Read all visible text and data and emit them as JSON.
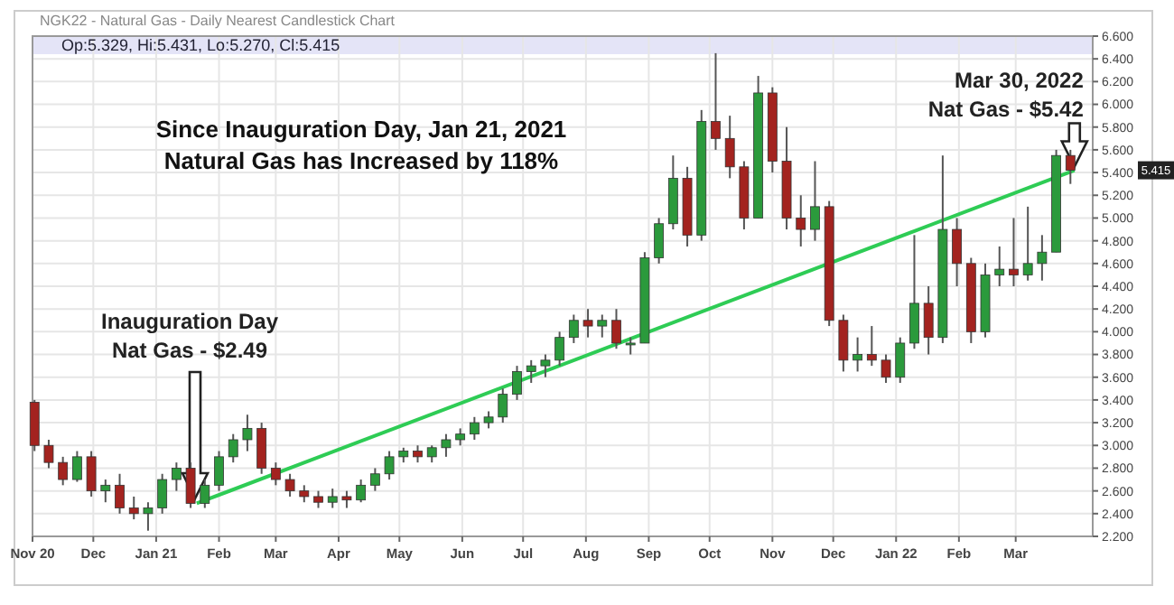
{
  "chart_data": {
    "type": "candlestick",
    "title": "NGK22 - Natural Gas - Daily Nearest Candlestick Chart",
    "x": [
      "2020-11-02",
      "2020-11-09",
      "2020-11-16",
      "2020-11-23",
      "2020-11-30",
      "2020-12-07",
      "2020-12-14",
      "2020-12-21",
      "2020-12-28",
      "2021-01-04",
      "2021-01-11",
      "2021-01-18",
      "2021-01-25",
      "2021-02-01",
      "2021-02-08",
      "2021-02-15",
      "2021-02-22",
      "2021-03-01",
      "2021-03-08",
      "2021-03-15",
      "2021-03-22",
      "2021-03-29",
      "2021-04-05",
      "2021-04-12",
      "2021-04-19",
      "2021-04-26",
      "2021-05-03",
      "2021-05-10",
      "2021-05-17",
      "2021-05-24",
      "2021-05-31",
      "2021-06-07",
      "2021-06-14",
      "2021-06-21",
      "2021-06-28",
      "2021-07-05",
      "2021-07-12",
      "2021-07-19",
      "2021-07-26",
      "2021-08-02",
      "2021-08-09",
      "2021-08-16",
      "2021-08-23",
      "2021-08-30",
      "2021-09-06",
      "2021-09-13",
      "2021-09-20",
      "2021-09-27",
      "2021-10-04",
      "2021-10-11",
      "2021-10-18",
      "2021-10-25",
      "2021-11-01",
      "2021-11-08",
      "2021-11-15",
      "2021-11-22",
      "2021-11-29",
      "2021-12-06",
      "2021-12-13",
      "2021-12-20",
      "2021-12-27",
      "2022-01-03",
      "2022-01-10",
      "2022-01-17",
      "2022-01-24",
      "2022-01-31",
      "2022-02-07",
      "2022-02-14",
      "2022-02-21",
      "2022-02-28",
      "2022-03-07",
      "2022-03-14",
      "2022-03-21",
      "2022-03-28"
    ],
    "ohlc": [
      [
        3.38,
        3.4,
        2.95,
        3.0
      ],
      [
        3.0,
        3.05,
        2.8,
        2.85
      ],
      [
        2.85,
        2.9,
        2.65,
        2.7
      ],
      [
        2.7,
        2.95,
        2.68,
        2.9
      ],
      [
        2.9,
        2.95,
        2.55,
        2.6
      ],
      [
        2.6,
        2.7,
        2.5,
        2.65
      ],
      [
        2.65,
        2.75,
        2.4,
        2.45
      ],
      [
        2.45,
        2.55,
        2.35,
        2.4
      ],
      [
        2.4,
        2.5,
        2.25,
        2.45
      ],
      [
        2.45,
        2.75,
        2.4,
        2.7
      ],
      [
        2.7,
        2.85,
        2.6,
        2.8
      ],
      [
        2.8,
        2.85,
        2.45,
        2.49
      ],
      [
        2.49,
        2.7,
        2.45,
        2.65
      ],
      [
        2.65,
        2.95,
        2.6,
        2.9
      ],
      [
        2.9,
        3.1,
        2.85,
        3.05
      ],
      [
        3.05,
        3.27,
        2.95,
        3.15
      ],
      [
        3.15,
        3.2,
        2.75,
        2.8
      ],
      [
        2.8,
        2.85,
        2.65,
        2.7
      ],
      [
        2.7,
        2.75,
        2.55,
        2.6
      ],
      [
        2.6,
        2.65,
        2.5,
        2.55
      ],
      [
        2.55,
        2.6,
        2.45,
        2.5
      ],
      [
        2.5,
        2.62,
        2.45,
        2.55
      ],
      [
        2.55,
        2.6,
        2.45,
        2.52
      ],
      [
        2.52,
        2.7,
        2.5,
        2.65
      ],
      [
        2.65,
        2.8,
        2.6,
        2.75
      ],
      [
        2.75,
        2.95,
        2.7,
        2.9
      ],
      [
        2.9,
        2.98,
        2.85,
        2.95
      ],
      [
        2.95,
        3.0,
        2.85,
        2.9
      ],
      [
        2.9,
        3.0,
        2.85,
        2.98
      ],
      [
        2.98,
        3.1,
        2.9,
        3.05
      ],
      [
        3.05,
        3.15,
        3.0,
        3.1
      ],
      [
        3.1,
        3.25,
        3.05,
        3.2
      ],
      [
        3.2,
        3.3,
        3.15,
        3.25
      ],
      [
        3.25,
        3.5,
        3.2,
        3.45
      ],
      [
        3.45,
        3.7,
        3.4,
        3.65
      ],
      [
        3.65,
        3.75,
        3.55,
        3.7
      ],
      [
        3.7,
        3.8,
        3.6,
        3.75
      ],
      [
        3.75,
        4.0,
        3.7,
        3.95
      ],
      [
        3.95,
        4.15,
        3.9,
        4.1
      ],
      [
        4.1,
        4.2,
        3.95,
        4.05
      ],
      [
        4.05,
        4.15,
        3.95,
        4.1
      ],
      [
        4.1,
        4.2,
        3.85,
        3.9
      ],
      [
        3.9,
        3.95,
        3.8,
        3.9
      ],
      [
        3.9,
        4.7,
        3.9,
        4.65
      ],
      [
        4.65,
        5.0,
        4.6,
        4.95
      ],
      [
        4.95,
        5.55,
        4.9,
        5.35
      ],
      [
        5.35,
        5.45,
        4.75,
        4.85
      ],
      [
        4.85,
        5.95,
        4.8,
        5.85
      ],
      [
        5.85,
        6.45,
        5.6,
        5.7
      ],
      [
        5.7,
        5.9,
        5.35,
        5.45
      ],
      [
        5.45,
        5.5,
        4.9,
        5.0
      ],
      [
        5.0,
        6.25,
        5.0,
        6.1
      ],
      [
        6.1,
        6.15,
        5.4,
        5.5
      ],
      [
        5.5,
        5.8,
        4.9,
        5.0
      ],
      [
        5.0,
        5.2,
        4.75,
        4.9
      ],
      [
        4.9,
        5.5,
        4.8,
        5.1
      ],
      [
        5.1,
        5.15,
        4.05,
        4.1
      ],
      [
        4.1,
        4.15,
        3.65,
        3.75
      ],
      [
        3.75,
        3.95,
        3.65,
        3.8
      ],
      [
        3.8,
        4.05,
        3.7,
        3.75
      ],
      [
        3.75,
        3.8,
        3.55,
        3.6
      ],
      [
        3.6,
        3.95,
        3.55,
        3.9
      ],
      [
        3.9,
        4.85,
        3.85,
        4.25
      ],
      [
        4.25,
        4.4,
        3.8,
        3.95
      ],
      [
        3.95,
        5.55,
        3.9,
        4.9
      ],
      [
        4.9,
        5.0,
        4.4,
        4.6
      ],
      [
        4.6,
        4.65,
        3.9,
        4.0
      ],
      [
        4.0,
        4.6,
        3.95,
        4.5
      ],
      [
        4.5,
        4.75,
        4.4,
        4.55
      ],
      [
        4.55,
        5.0,
        4.4,
        4.5
      ],
      [
        4.5,
        5.1,
        4.45,
        4.6
      ],
      [
        4.6,
        4.85,
        4.45,
        4.7
      ],
      [
        4.7,
        5.6,
        4.7,
        5.55
      ],
      [
        5.55,
        5.6,
        5.3,
        5.42
      ]
    ],
    "colors": [
      "#a3231f",
      "#a3231f",
      "#a3231f",
      "#2b9a3c",
      "#a3231f",
      "#2b9a3c",
      "#a3231f",
      "#a3231f",
      "#2b9a3c",
      "#2b9a3c",
      "#2b9a3c",
      "#a3231f",
      "#2b9a3c",
      "#2b9a3c",
      "#2b9a3c",
      "#2b9a3c",
      "#a3231f",
      "#a3231f",
      "#a3231f",
      "#a3231f",
      "#a3231f",
      "#2b9a3c",
      "#a3231f",
      "#2b9a3c",
      "#2b9a3c",
      "#2b9a3c",
      "#2b9a3c",
      "#a3231f",
      "#2b9a3c",
      "#2b9a3c",
      "#2b9a3c",
      "#2b9a3c",
      "#2b9a3c",
      "#2b9a3c",
      "#2b9a3c",
      "#2b9a3c",
      "#2b9a3c",
      "#2b9a3c",
      "#2b9a3c",
      "#a3231f",
      "#2b9a3c",
      "#a3231f",
      "#2b9a3c",
      "#2b9a3c",
      "#2b9a3c",
      "#2b9a3c",
      "#a3231f",
      "#2b9a3c",
      "#a3231f",
      "#a3231f",
      "#a3231f",
      "#2b9a3c",
      "#a3231f",
      "#a3231f",
      "#a3231f",
      "#2b9a3c",
      "#a3231f",
      "#a3231f",
      "#2b9a3c",
      "#a3231f",
      "#a3231f",
      "#2b9a3c",
      "#2b9a3c",
      "#a3231f",
      "#2b9a3c",
      "#a3231f",
      "#a3231f",
      "#2b9a3c",
      "#2b9a3c",
      "#a3231f",
      "#2b9a3c",
      "#2b9a3c",
      "#2b9a3c",
      "#a3231f"
    ],
    "series": [
      {
        "type": "line",
        "x": [
          "2021-01-21",
          "2022-03-30"
        ],
        "values": [
          2.49,
          5.42
        ],
        "color": "#2ecc55"
      }
    ],
    "xlim": [
      "2020-11-01",
      "2022-04-08"
    ],
    "xticks": [
      {
        "value": "2020-11-01",
        "label": "Nov 20"
      },
      {
        "value": "2020-12-01",
        "label": "Dec"
      },
      {
        "value": "2021-01-01",
        "label": "Jan 21"
      },
      {
        "value": "2021-02-01",
        "label": "Feb"
      },
      {
        "value": "2021-03-01",
        "label": "Mar"
      },
      {
        "value": "2021-04-01",
        "label": "Apr"
      },
      {
        "value": "2021-05-01",
        "label": "May"
      },
      {
        "value": "2021-06-01",
        "label": "Jun"
      },
      {
        "value": "2021-07-01",
        "label": "Jul"
      },
      {
        "value": "2021-08-01",
        "label": "Aug"
      },
      {
        "value": "2021-09-01",
        "label": "Sep"
      },
      {
        "value": "2021-10-01",
        "label": "Oct"
      },
      {
        "value": "2021-11-01",
        "label": "Nov"
      },
      {
        "value": "2021-12-01",
        "label": "Dec"
      },
      {
        "value": "2022-01-01",
        "label": "Jan 22"
      },
      {
        "value": "2022-02-01",
        "label": "Feb"
      },
      {
        "value": "2022-03-01",
        "label": "Mar"
      }
    ],
    "ylim": [
      2.2,
      6.6
    ],
    "yticks": [
      {
        "value": 2.2,
        "label": "2.200"
      },
      {
        "value": 2.4,
        "label": "2.400"
      },
      {
        "value": 2.6,
        "label": "2.600"
      },
      {
        "value": 2.8,
        "label": "2.800"
      },
      {
        "value": 3.0,
        "label": "3.000"
      },
      {
        "value": 3.2,
        "label": "3.200"
      },
      {
        "value": 3.4,
        "label": "3.400"
      },
      {
        "value": 3.6,
        "label": "3.600"
      },
      {
        "value": 3.8,
        "label": "3.800"
      },
      {
        "value": 4.0,
        "label": "4.000"
      },
      {
        "value": 4.2,
        "label": "4.200"
      },
      {
        "value": 4.4,
        "label": "4.400"
      },
      {
        "value": 4.6,
        "label": "4.600"
      },
      {
        "value": 4.8,
        "label": "4.800"
      },
      {
        "value": 5.0,
        "label": "5.000"
      },
      {
        "value": 5.2,
        "label": "5.200"
      },
      {
        "value": 5.4,
        "label": "5.400"
      },
      {
        "value": 5.6,
        "label": "5.600"
      },
      {
        "value": 5.8,
        "label": "5.800"
      },
      {
        "value": 6.0,
        "label": "6.000"
      },
      {
        "value": 6.2,
        "label": "6.200"
      },
      {
        "value": 6.4,
        "label": "6.400"
      },
      {
        "value": 6.6,
        "label": "6.600"
      }
    ],
    "grid": true,
    "annotations": [
      "Op:5.329, Hi:5.431, Lo:5.270, Cl:5.415",
      "Since Inauguration Day, Jan 21, 2021\nNatural Gas has Increased by 118%",
      "Inauguration Day\nNat Gas - $2.49",
      {
        "text": "Mar 30, 2022\nNat Gas - $5.42",
        "x": "2022-03-30",
        "y": 5.42
      },
      "5.415"
    ]
  }
}
